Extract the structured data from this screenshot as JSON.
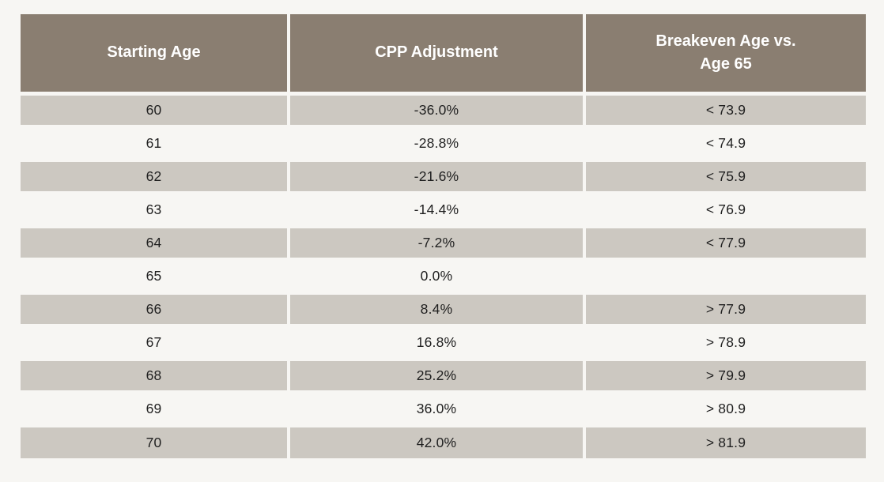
{
  "chart_data": {
    "type": "table",
    "columns": [
      "Starting Age",
      "CPP Adjustment",
      "Breakeven Age vs.\nAge 65"
    ],
    "rows": [
      [
        "60",
        "-36.0%",
        "< 73.9"
      ],
      [
        "61",
        "-28.8%",
        "< 74.9"
      ],
      [
        "62",
        "-21.6%",
        "< 75.9"
      ],
      [
        "63",
        "-14.4%",
        "< 76.9"
      ],
      [
        "64",
        "-7.2%",
        "< 77.9"
      ],
      [
        "65",
        "0.0%",
        ""
      ],
      [
        "66",
        "8.4%",
        "> 77.9"
      ],
      [
        "67",
        "16.8%",
        "> 78.9"
      ],
      [
        "68",
        "25.2%",
        "> 79.9"
      ],
      [
        "69",
        "36.0%",
        "> 80.9"
      ],
      [
        "70",
        "42.0%",
        "> 81.9"
      ]
    ]
  },
  "colors": {
    "page_bg": "#f7f6f3",
    "header_bg": "#8a7e71",
    "header_text": "#ffffff",
    "row_shaded_bg": "#ccc8c1",
    "row_plain_bg": "#f7f6f3",
    "body_text": "#1f1f1f"
  }
}
